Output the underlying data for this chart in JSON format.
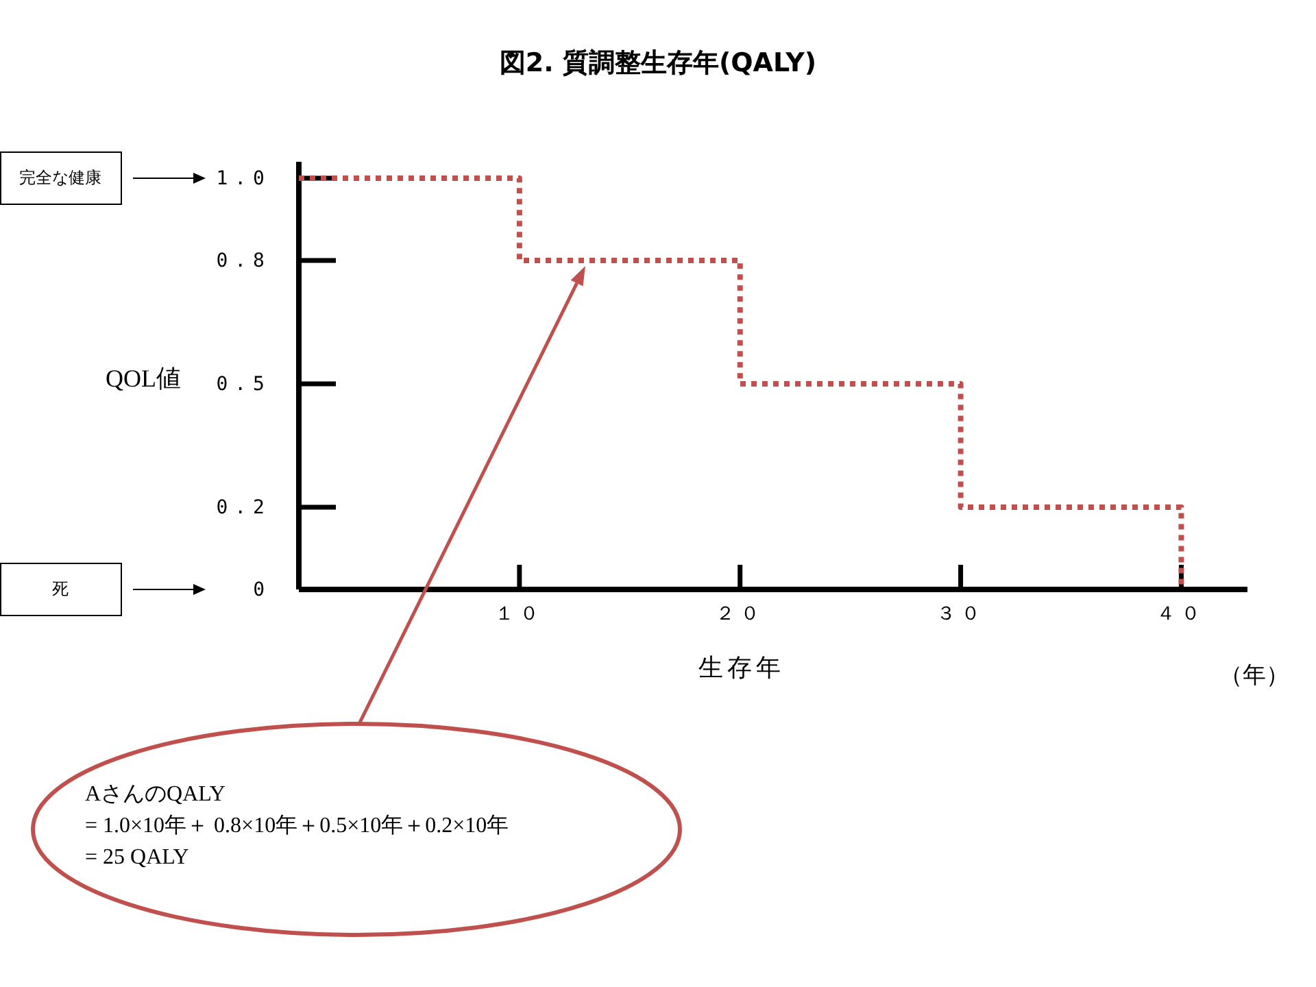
{
  "chart_data": {
    "type": "step",
    "title": "図2. 質調整生存年(QALY)",
    "xlabel": "生存年",
    "ylabel": "QOL値",
    "x": [
      0,
      10,
      20,
      30,
      40
    ],
    "series": [
      {
        "color": "#c0504d",
        "values": [
          1.0,
          0.8,
          0.5,
          0.2,
          0
        ]
      }
    ],
    "xlim": [
      0,
      43
    ],
    "ylim": [
      0,
      1.04
    ],
    "xticks": [
      {
        "value": 10,
        "label": "１０"
      },
      {
        "value": 20,
        "label": "２０"
      },
      {
        "value": 30,
        "label": "３０"
      },
      {
        "value": 40,
        "label": "４０"
      }
    ],
    "yticks": [
      0,
      0.2,
      0.5,
      0.8,
      {
        "value": 1,
        "label": "1.0"
      }
    ],
    "line_style": "dotted",
    "annotations": [
      "完全な健康",
      "死",
      "AさんのQALY\n= 1.0×10年＋ 0.8×10年＋0.5×10年＋0.2×10年\n= 25 QALY",
      "（年）"
    ]
  }
}
